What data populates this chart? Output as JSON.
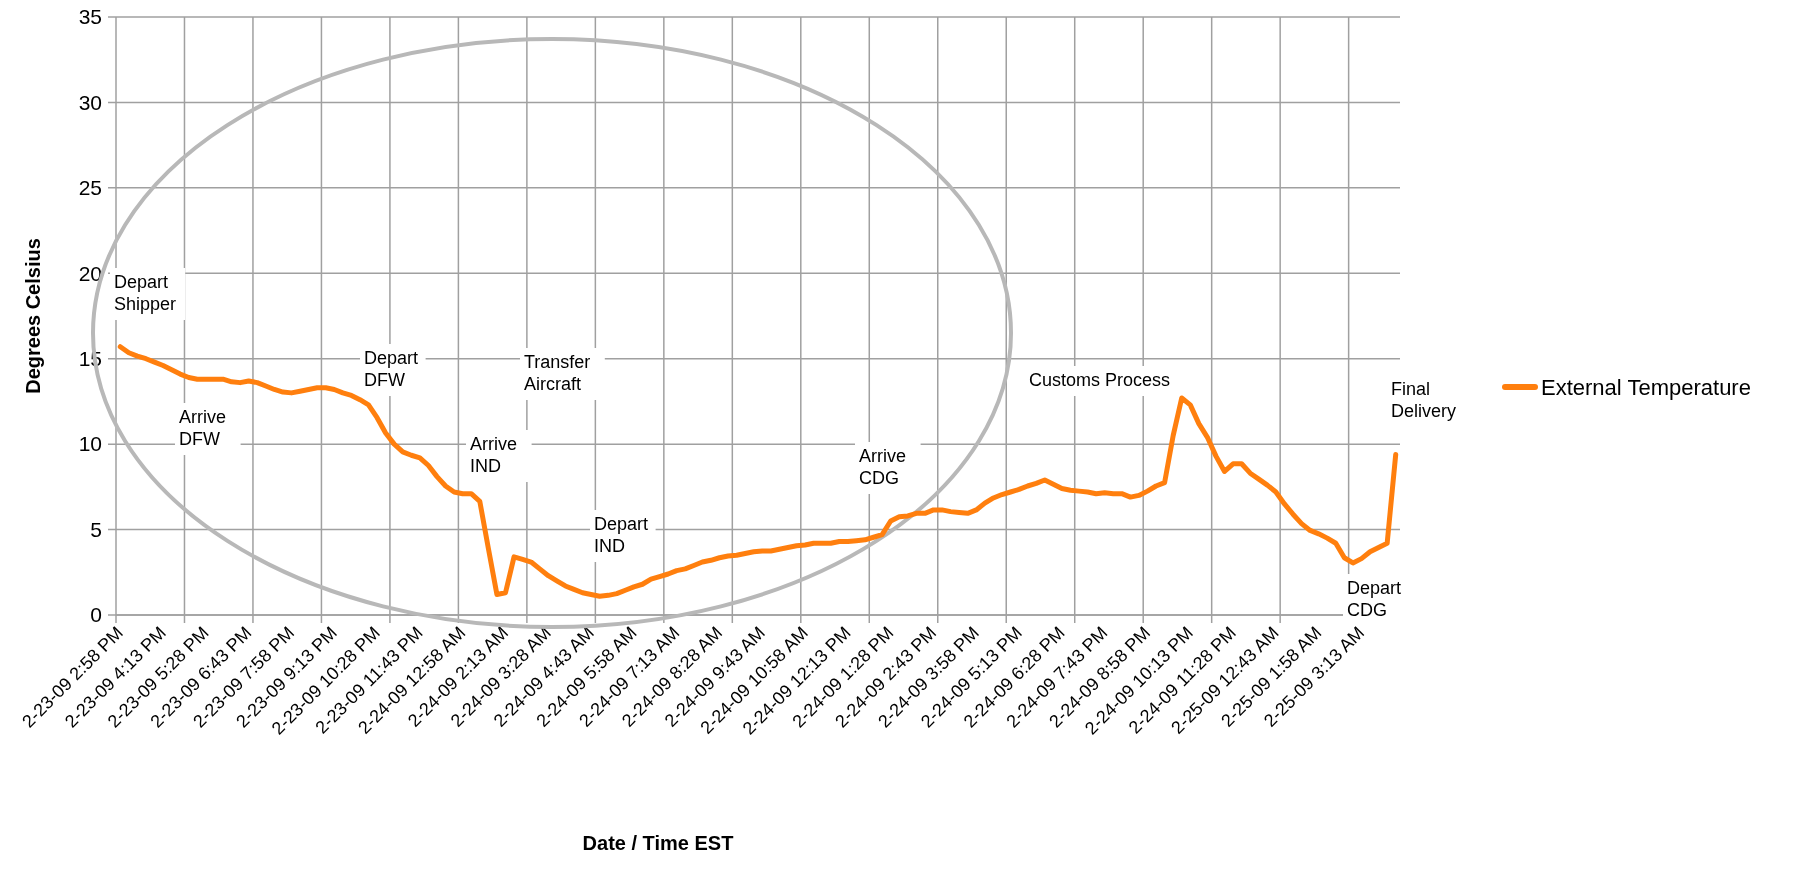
{
  "chart_data": {
    "type": "line",
    "xlabel": "Date / Time EST",
    "ylabel": "Degrees Celsius",
    "categories": [
      "2-23-09 2:58 PM",
      null,
      null,
      null,
      null,
      "2-23-09 4:13 PM",
      null,
      null,
      null,
      null,
      "2-23-09 5:28 PM",
      null,
      null,
      null,
      null,
      "2-23-09 6:43 PM",
      null,
      null,
      null,
      null,
      "2-23-09 7:58 PM",
      null,
      null,
      null,
      null,
      "2-23-09 9:13 PM",
      null,
      null,
      null,
      null,
      "2-23-09 10:28 PM",
      null,
      null,
      null,
      null,
      "2-23-09 11:43 PM",
      null,
      null,
      null,
      null,
      "2-24-09 12:58 AM",
      null,
      null,
      null,
      null,
      "2-24-09 2:13 AM",
      null,
      null,
      null,
      null,
      "2-24-09 3:28 AM",
      null,
      null,
      null,
      null,
      "2-24-09 4:43 AM",
      null,
      null,
      null,
      null,
      "2-24-09 5:58 AM",
      null,
      null,
      null,
      null,
      "2-24-09 7:13 AM",
      null,
      null,
      null,
      null,
      "2-24-09 8:28 AM",
      null,
      null,
      null,
      null,
      "2-24-09 9:43 AM",
      null,
      null,
      null,
      null,
      "2-24-09 10:58 AM",
      null,
      null,
      null,
      null,
      "2-24-09 12:13 PM",
      null,
      null,
      null,
      null,
      "2-24-09 1:28 PM",
      null,
      null,
      null,
      null,
      "2-24-09 2:43 PM",
      null,
      null,
      null,
      null,
      "2-24-09 3:58 PM",
      null,
      null,
      null,
      null,
      "2-24-09 5:13 PM",
      null,
      null,
      null,
      null,
      "2-24-09 6:28 PM",
      null,
      null,
      null,
      null,
      "2-24-09 7:43 PM",
      null,
      null,
      null,
      null,
      "2-24-09 8:58 PM",
      null,
      null,
      null,
      null,
      "2-24-09 10:13 PM",
      null,
      null,
      null,
      null,
      "2-24-09 11:28 PM",
      null,
      null,
      null,
      null,
      "2-25-09 12:43 AM",
      null,
      null,
      null,
      null,
      "2-25-09 1:58 AM",
      null,
      null,
      null,
      null,
      "2-25-09 3:13 AM",
      null,
      null,
      null,
      null
    ],
    "series": [
      {
        "name": "External Temperature",
        "color": "#ff7f0e",
        "values": [
          15.7,
          15.35,
          15.15,
          15.0,
          14.8,
          14.6,
          14.35,
          14.1,
          13.9,
          13.8,
          13.8,
          13.8,
          13.8,
          13.65,
          13.6,
          13.7,
          13.6,
          13.4,
          13.2,
          13.05,
          13.0,
          13.1,
          13.2,
          13.3,
          13.3,
          13.2,
          13.0,
          12.85,
          12.6,
          12.3,
          11.55,
          10.65,
          10.0,
          9.55,
          9.35,
          9.2,
          8.75,
          8.1,
          7.55,
          7.2,
          7.1,
          7.1,
          6.65,
          3.9,
          1.2,
          1.3,
          3.4,
          3.25,
          3.1,
          2.7,
          2.3,
          2.0,
          1.7,
          1.5,
          1.3,
          1.2,
          1.1,
          1.15,
          1.25,
          1.45,
          1.65,
          1.8,
          2.1,
          2.25,
          2.4,
          2.6,
          2.7,
          2.9,
          3.1,
          3.2,
          3.35,
          3.45,
          3.5,
          3.6,
          3.7,
          3.75,
          3.75,
          3.85,
          3.95,
          4.05,
          4.1,
          4.2,
          4.2,
          4.2,
          4.3,
          4.3,
          4.35,
          4.4,
          4.55,
          4.7,
          5.5,
          5.75,
          5.8,
          5.95,
          5.95,
          6.15,
          6.15,
          6.05,
          6.0,
          5.95,
          6.15,
          6.55,
          6.85,
          7.05,
          7.2,
          7.35,
          7.55,
          7.7,
          7.9,
          7.65,
          7.4,
          7.3,
          7.25,
          7.2,
          7.1,
          7.15,
          7.1,
          7.1,
          6.9,
          7.0,
          7.25,
          7.55,
          7.75,
          10.5,
          12.7,
          12.3,
          11.2,
          10.4,
          9.3,
          8.4,
          8.85,
          8.85,
          8.3,
          7.95,
          7.6,
          7.2,
          6.5,
          5.9,
          5.35,
          4.95,
          4.75,
          4.5,
          4.2,
          3.35,
          3.05,
          3.3,
          3.7,
          3.95,
          4.2,
          9.4
        ]
      }
    ],
    "ylim": [
      0,
      35
    ],
    "yticks": [
      0,
      5,
      10,
      15,
      20,
      25,
      30,
      35
    ],
    "grid": true,
    "legend": "right",
    "annotations": [
      "Depart\nShipper",
      "Arrive\nDFW",
      "Depart\nDFW",
      "Transfer\nAircraft",
      "Arrive\nIND",
      "Depart\nIND",
      "Arrive\nCDG",
      "Customs Process",
      "Final\nDelivery",
      "Depart\nCDG"
    ]
  }
}
